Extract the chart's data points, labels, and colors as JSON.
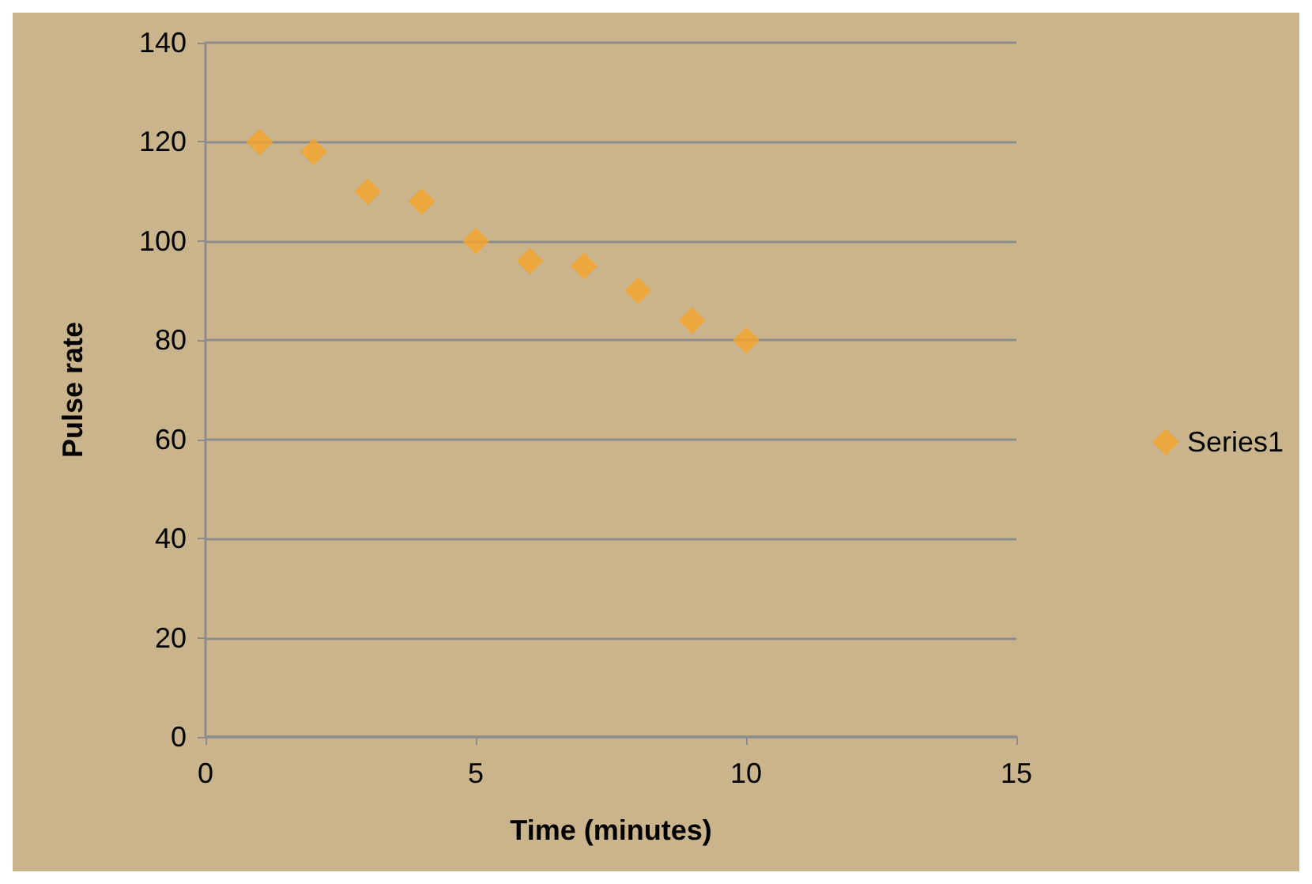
{
  "chart_data": {
    "type": "scatter",
    "xlabel": "Time (minutes)",
    "ylabel": "Pulse rate",
    "x": [
      1,
      2,
      3,
      4,
      5,
      6,
      7,
      8,
      9,
      10
    ],
    "series": [
      {
        "name": "Series1",
        "color": "#f5a52a",
        "values": [
          120,
          118,
          110,
          108,
          100,
          96,
          95,
          90,
          84,
          80
        ]
      }
    ],
    "xlim": [
      0,
      15
    ],
    "xticks": [
      0,
      5,
      10,
      15
    ],
    "ylim": [
      0,
      140
    ],
    "yticks": [
      0,
      20,
      40,
      60,
      80,
      100,
      120,
      140
    ],
    "grid": "y",
    "legend": "right",
    "marker": "diamond"
  }
}
